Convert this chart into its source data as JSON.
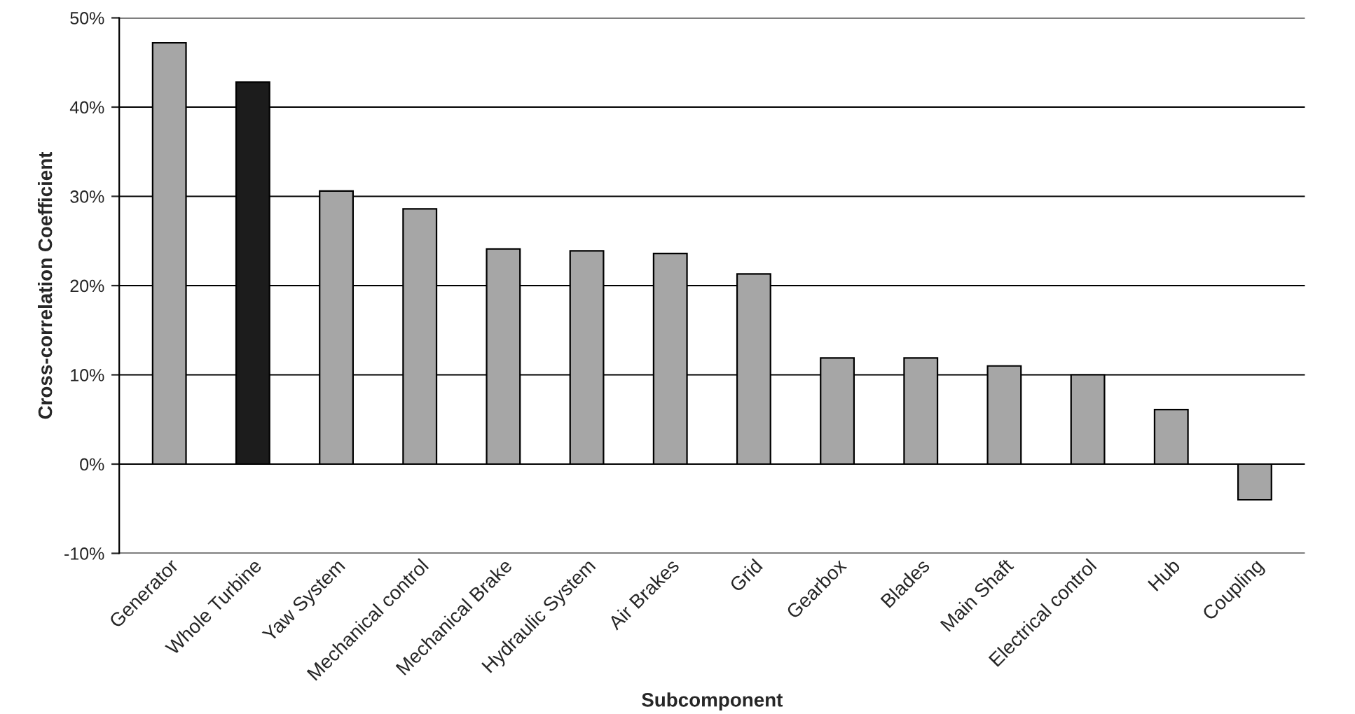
{
  "chart_data": {
    "type": "bar",
    "xlabel": "Subcomponent",
    "ylabel": "Cross-correlation Coefficient",
    "categories": [
      "Generator",
      "Whole Turbine",
      "Yaw System",
      "Mechanical control",
      "Mechanical Brake",
      "Hydraulic System",
      "Air Brakes",
      "Grid",
      "Gearbox",
      "Blades",
      "Main Shaft",
      "Electrical control",
      "Hub",
      "Coupling"
    ],
    "values": [
      47.2,
      42.8,
      30.6,
      28.6,
      24.1,
      23.9,
      23.6,
      21.3,
      11.9,
      11.9,
      11.0,
      10.0,
      6.1,
      -4.0
    ],
    "colors": [
      "#a6a6a6",
      "#1c1c1c",
      "#a6a6a6",
      "#a6a6a6",
      "#a6a6a6",
      "#a6a6a6",
      "#a6a6a6",
      "#a6a6a6",
      "#a6a6a6",
      "#a6a6a6",
      "#a6a6a6",
      "#a6a6a6",
      "#a6a6a6",
      "#a6a6a6"
    ],
    "ylim": [
      -10,
      50
    ],
    "yticks": [
      {
        "value": -10,
        "label": "-10%"
      },
      {
        "value": 0,
        "label": "0%"
      },
      {
        "value": 10,
        "label": "10%"
      },
      {
        "value": 20,
        "label": "20%"
      },
      {
        "value": 30,
        "label": "30%"
      },
      {
        "value": 40,
        "label": "40%"
      },
      {
        "value": 50,
        "label": "50%"
      }
    ],
    "grid": "y",
    "legend": false
  }
}
